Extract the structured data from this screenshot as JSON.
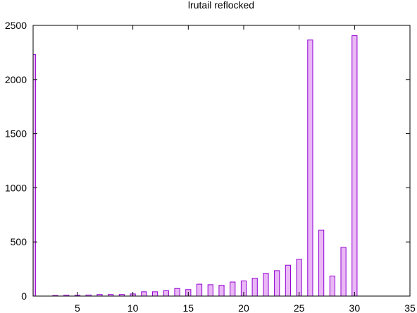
{
  "chart_data": {
    "type": "bar",
    "title": "lrutail reflocked",
    "xlabel": "",
    "ylabel": "",
    "xlim": [
      1,
      35
    ],
    "ylim": [
      0,
      2500
    ],
    "xticks": [
      5,
      10,
      15,
      20,
      25,
      30,
      35
    ],
    "yticks": [
      0,
      500,
      1000,
      1500,
      2000,
      2500
    ],
    "x": [
      1,
      2,
      3,
      4,
      5,
      6,
      7,
      8,
      9,
      10,
      11,
      12,
      13,
      14,
      15,
      16,
      17,
      18,
      19,
      20,
      21,
      22,
      23,
      24,
      25,
      26,
      27,
      28,
      29,
      30
    ],
    "values": [
      2230,
      0,
      5,
      8,
      8,
      10,
      15,
      15,
      15,
      20,
      40,
      40,
      50,
      70,
      60,
      110,
      105,
      100,
      130,
      140,
      165,
      210,
      235,
      285,
      340,
      2365,
      610,
      185,
      450,
      2405
    ],
    "bar_fill": "#e9b8f5",
    "bar_stroke": "#9400d3",
    "grid": false,
    "legend": "none"
  }
}
